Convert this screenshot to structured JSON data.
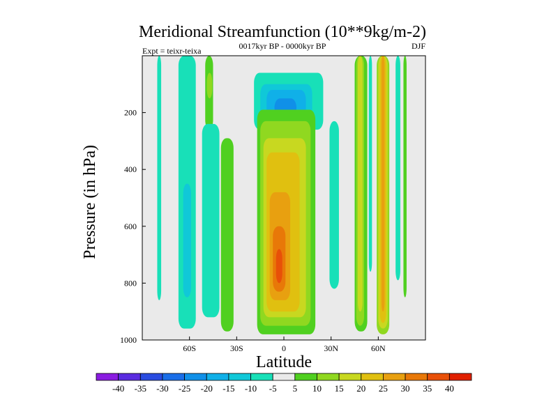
{
  "chart_data": {
    "type": "heatmap",
    "title": "Meridional Streamfunction (10**9kg/m-2)",
    "subtitle_left": "Expt = teixr-teixa",
    "subtitle_center": "0017kyr BP - 0000kyr BP",
    "subtitle_right": "DJF",
    "xlabel": "Latitude",
    "ylabel": "Pressure (in hPa)",
    "xlim": [
      -90,
      90
    ],
    "ylim": [
      1000,
      0
    ],
    "x_ticks": [
      {
        "value": -60,
        "label": "60S"
      },
      {
        "value": -30,
        "label": "30S"
      },
      {
        "value": 0,
        "label": "0"
      },
      {
        "value": 30,
        "label": "30N"
      },
      {
        "value": 60,
        "label": "60N"
      }
    ],
    "y_ticks": [
      {
        "value": 200,
        "label": "200"
      },
      {
        "value": 400,
        "label": "400"
      },
      {
        "value": 600,
        "label": "600"
      },
      {
        "value": 800,
        "label": "800"
      },
      {
        "value": 1000,
        "label": "1000"
      }
    ],
    "colorbar": {
      "levels": [
        -40,
        -35,
        -30,
        -25,
        -20,
        -15,
        -10,
        -5,
        5,
        10,
        15,
        20,
        25,
        30,
        35,
        40
      ],
      "labels": [
        "-40",
        "-35",
        "-30",
        "-25",
        "-20",
        "-15",
        "-10",
        "-5",
        "5",
        "10",
        "15",
        "20",
        "25",
        "30",
        "35",
        "40"
      ],
      "colors": [
        "#8a1ce0",
        "#5a2ce0",
        "#2a4ce0",
        "#1a6ee8",
        "#1090e8",
        "#10b0e8",
        "#10c8d8",
        "#18e0b8",
        "#eaeaea",
        "#50d020",
        "#90d820",
        "#c8d820",
        "#e0c010",
        "#e8a010",
        "#e87808",
        "#e85008",
        "#e02000"
      ]
    },
    "regions": [
      {
        "lat": [
          -80.5,
          -78
        ],
        "p": [
          0,
          860
        ],
        "value": -7
      },
      {
        "lat": [
          -67,
          -56
        ],
        "p": [
          0,
          960
        ],
        "value": -7
      },
      {
        "lat": [
          -64,
          -59
        ],
        "p": [
          450,
          850
        ],
        "value": -12
      },
      {
        "lat": [
          -50,
          -45
        ],
        "p": [
          0,
          260
        ],
        "value": 7
      },
      {
        "lat": [
          -49,
          -45.5
        ],
        "p": [
          60,
          150
        ],
        "value": 12
      },
      {
        "lat": [
          -52,
          -41
        ],
        "p": [
          240,
          920
        ],
        "value": -7
      },
      {
        "lat": [
          -40,
          -32
        ],
        "p": [
          290,
          970
        ],
        "value": 7
      },
      {
        "lat": [
          -19,
          25
        ],
        "p": [
          60,
          260
        ],
        "value": -7
      },
      {
        "lat": [
          -15,
          18
        ],
        "p": [
          100,
          240
        ],
        "value": -12
      },
      {
        "lat": [
          -11,
          14
        ],
        "p": [
          120,
          225
        ],
        "value": -17
      },
      {
        "lat": [
          -6,
          8
        ],
        "p": [
          150,
          215
        ],
        "value": -22
      },
      {
        "lat": [
          10,
          13
        ],
        "p": [
          215,
          235
        ],
        "value": -27
      },
      {
        "lat": [
          -17,
          20
        ],
        "p": [
          190,
          980
        ],
        "value": 7
      },
      {
        "lat": [
          -15,
          17
        ],
        "p": [
          230,
          950
        ],
        "value": 12
      },
      {
        "lat": [
          -13,
          14
        ],
        "p": [
          290,
          920
        ],
        "value": 17
      },
      {
        "lat": [
          -11,
          10
        ],
        "p": [
          340,
          900
        ],
        "value": 22
      },
      {
        "lat": [
          -9,
          4
        ],
        "p": [
          480,
          860
        ],
        "value": 27
      },
      {
        "lat": [
          -7,
          1
        ],
        "p": [
          600,
          830
        ],
        "value": 32
      },
      {
        "lat": [
          -5,
          -1
        ],
        "p": [
          680,
          800
        ],
        "value": 37
      },
      {
        "lat": [
          29,
          35
        ],
        "p": [
          230,
          820
        ],
        "value": -7
      },
      {
        "lat": [
          45,
          53
        ],
        "p": [
          0,
          970
        ],
        "value": 7
      },
      {
        "lat": [
          46,
          51
        ],
        "p": [
          0,
          950
        ],
        "value": 12
      },
      {
        "lat": [
          47,
          50
        ],
        "p": [
          0,
          900
        ],
        "value": 17
      },
      {
        "lat": [
          54,
          56
        ],
        "p": [
          0,
          760
        ],
        "value": -7
      },
      {
        "lat": [
          59,
          67
        ],
        "p": [
          0,
          980
        ],
        "value": 12
      },
      {
        "lat": [
          60,
          66
        ],
        "p": [
          0,
          960
        ],
        "value": 17
      },
      {
        "lat": [
          61,
          65
        ],
        "p": [
          0,
          940
        ],
        "value": 22
      },
      {
        "lat": [
          62,
          64
        ],
        "p": [
          0,
          900
        ],
        "value": 27
      },
      {
        "lat": [
          71,
          74
        ],
        "p": [
          0,
          790
        ],
        "value": -7
      },
      {
        "lat": [
          76,
          78
        ],
        "p": [
          0,
          850
        ],
        "value": 7
      }
    ]
  }
}
